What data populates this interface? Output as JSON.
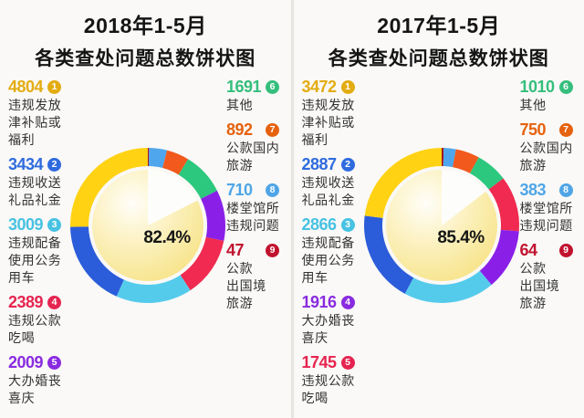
{
  "page": {
    "background": "#e7e5e1",
    "card_background": "#faf9f7",
    "title_color": "#151515",
    "label_color": "#333333"
  },
  "charts": [
    {
      "title_line1": "2018年1-5月",
      "title_line2": "各类查处问题总数饼状图",
      "center_percent": "82.4%",
      "legend_columns": {
        "left_ranks": [
          0,
          1,
          2,
          3,
          4
        ],
        "right_ranks": [
          5,
          6,
          7,
          8
        ]
      },
      "items": [
        {
          "rank": "1",
          "value": "4804",
          "label": "违规发放\n津补贴或\n福利",
          "color": "#E3AC12",
          "ring_color": "#FFD214"
        },
        {
          "rank": "2",
          "value": "3434",
          "label": "违规收送\n礼品礼金",
          "color": "#2F6BDF",
          "ring_color": "#2B5CD9"
        },
        {
          "rank": "3",
          "value": "3009",
          "label": "违规配备\n使用公务\n用车",
          "color": "#47C2E2",
          "ring_color": "#55CBEC"
        },
        {
          "rank": "4",
          "value": "2389",
          "label": "违规公款\n吃喝",
          "color": "#E62450",
          "ring_color": "#F02A50"
        },
        {
          "rank": "5",
          "value": "2009",
          "label": "大办婚丧\n喜庆",
          "color": "#8A2BE0",
          "ring_color": "#8A20E8"
        },
        {
          "rank": "6",
          "value": "1691",
          "label": "其他",
          "color": "#35BE7C",
          "ring_color": "#2CC87E"
        },
        {
          "rank": "7",
          "value": "892",
          "label": "公款国内\n旅游",
          "color": "#E6620E",
          "ring_color": "#F2591D"
        },
        {
          "rank": "8",
          "value": "710",
          "label": "楼堂馆所\n违规问题",
          "color": "#4FA5E6",
          "ring_color": "#4FA6EC"
        },
        {
          "rank": "9",
          "value": "47",
          "label": "公款\n出国境\n旅游",
          "color": "#C1122E",
          "ring_color": "#A01220"
        }
      ]
    },
    {
      "title_line1": "2017年1-5月",
      "title_line2": "各类查处问题总数饼状图",
      "center_percent": "85.4%",
      "legend_columns": {
        "left_ranks": [
          0,
          1,
          2,
          3,
          4
        ],
        "right_ranks": [
          5,
          6,
          7,
          8
        ]
      },
      "items": [
        {
          "rank": "1",
          "value": "3472",
          "label": "违规发放\n津补贴或\n福利",
          "color": "#E3AC12",
          "ring_color": "#FFD214"
        },
        {
          "rank": "2",
          "value": "2887",
          "label": "违规收送\n礼品礼金",
          "color": "#2F6BDF",
          "ring_color": "#2B5CD9"
        },
        {
          "rank": "3",
          "value": "2866",
          "label": "违规配备\n使用公务\n用车",
          "color": "#47C2E2",
          "ring_color": "#55CBEC"
        },
        {
          "rank": "4",
          "value": "1916",
          "label": "大办婚丧\n喜庆",
          "color": "#8A2BE0",
          "ring_color": "#8A20E8"
        },
        {
          "rank": "5",
          "value": "1745",
          "label": "违规公款\n吃喝",
          "color": "#E62450",
          "ring_color": "#F02A50"
        },
        {
          "rank": "6",
          "value": "1010",
          "label": "其他",
          "color": "#35BE7C",
          "ring_color": "#2CC87E"
        },
        {
          "rank": "7",
          "value": "750",
          "label": "公款国内\n旅游",
          "color": "#E6620E",
          "ring_color": "#F2591D"
        },
        {
          "rank": "8",
          "value": "383",
          "label": "楼堂馆所\n违规问题",
          "color": "#4FA5E6",
          "ring_color": "#4FA6EC"
        },
        {
          "rank": "9",
          "value": "64",
          "label": "公款\n出国境\n旅游",
          "color": "#C1122E",
          "ring_color": "#A01220"
        }
      ]
    }
  ],
  "chart_data": [
    {
      "type": "pie",
      "donut": true,
      "title": "2018年1-5月 各类查处问题总数饼状图",
      "categories": [
        "违规发放津补贴或福利",
        "违规收送礼品礼金",
        "违规配备使用公务用车",
        "违规公款吃喝",
        "大办婚丧喜庆",
        "其他",
        "公款国内旅游",
        "楼堂馆所违规问题",
        "公款出国境旅游"
      ],
      "values": [
        4804,
        3434,
        3009,
        2389,
        2009,
        1691,
        892,
        710,
        47
      ],
      "colors": [
        "#FFD214",
        "#2B5CD9",
        "#55CBEC",
        "#F02A50",
        "#8A20E8",
        "#2CC87E",
        "#F2591D",
        "#4FA6EC",
        "#A01220"
      ],
      "center_label": "82.4%",
      "legend_position": "both sides",
      "start_angle_deg_from_12oclock": 0,
      "ring_order_clockwise": "rank 9 to rank 1",
      "inner_pie": {
        "filled_percent": 82.4,
        "remainder_percent": 17.6,
        "remainder_starts_at": "12 o'clock clockwise"
      }
    },
    {
      "type": "pie",
      "donut": true,
      "title": "2017年1-5月 各类查处问题总数饼状图",
      "categories": [
        "违规发放津补贴或福利",
        "违规收送礼品礼金",
        "违规配备使用公务用车",
        "大办婚丧喜庆",
        "违规公款吃喝",
        "其他",
        "公款国内旅游",
        "楼堂馆所违规问题",
        "公款出国境旅游"
      ],
      "values": [
        3472,
        2887,
        2866,
        1916,
        1745,
        1010,
        750,
        383,
        64
      ],
      "colors": [
        "#FFD214",
        "#2B5CD9",
        "#55CBEC",
        "#8A20E8",
        "#F02A50",
        "#2CC87E",
        "#F2591D",
        "#4FA6EC",
        "#A01220"
      ],
      "center_label": "85.4%",
      "legend_position": "both sides",
      "start_angle_deg_from_12oclock": 0,
      "ring_order_clockwise": "rank 9 to rank 1",
      "inner_pie": {
        "filled_percent": 85.4,
        "remainder_percent": 14.6,
        "remainder_starts_at": "12 o'clock clockwise"
      }
    }
  ]
}
